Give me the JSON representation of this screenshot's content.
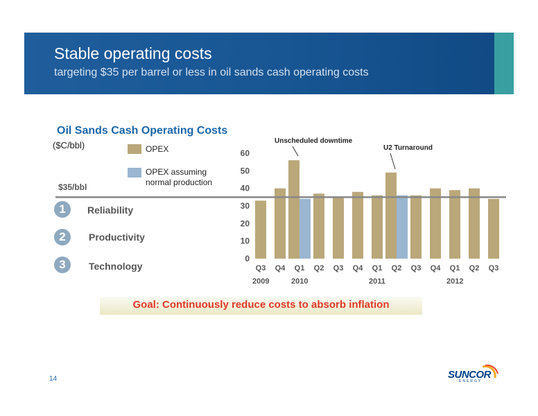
{
  "header": {
    "title": "Stable operating costs",
    "subtitle": "targeting $35 per barrel or less in oil sands cash operating costs"
  },
  "chart_data": {
    "type": "bar",
    "title": "Oil Sands Cash Operating Costs",
    "unit_label": "($C/bbl)",
    "ylim": [
      0,
      60
    ],
    "yticks": [
      0,
      10,
      20,
      30,
      40,
      50,
      60
    ],
    "categories": [
      "Q3",
      "Q4",
      "Q1",
      "Q2",
      "Q3",
      "Q4",
      "Q1",
      "Q2",
      "Q3",
      "Q4",
      "Q1",
      "Q2",
      "Q3"
    ],
    "years": [
      {
        "label": "2009",
        "start_index": 0
      },
      {
        "label": "2010",
        "start_index": 2
      },
      {
        "label": "2011",
        "start_index": 6
      },
      {
        "label": "2012",
        "start_index": 10
      }
    ],
    "series": [
      {
        "name": "OPEX",
        "color": "#baa77a",
        "values": [
          33,
          40,
          56,
          37,
          35,
          38,
          36,
          49,
          36,
          40,
          39,
          40,
          34
        ]
      },
      {
        "name": "OPEX assuming normal production",
        "color": "#9ab6d1",
        "values": [
          null,
          null,
          34,
          null,
          null,
          null,
          null,
          36,
          null,
          null,
          null,
          null,
          null
        ]
      }
    ],
    "reference_line": {
      "value": 35,
      "label": "$35/bbl",
      "color": "#888888"
    },
    "annotations": [
      {
        "text": "Unscheduled downtime",
        "index": 2
      },
      {
        "text": "U2 Turnaround",
        "index": 7
      }
    ]
  },
  "legend": {
    "opex": "OPEX",
    "opex_normal_line1": "OPEX assuming",
    "opex_normal_line2": "normal production"
  },
  "items": [
    {
      "number": "1",
      "label": "Reliability"
    },
    {
      "number": "2",
      "label": "Productivity"
    },
    {
      "number": "3",
      "label": "Technology"
    }
  ],
  "goal": "Goal: Continuously reduce costs to absorb inflation",
  "footer": {
    "page_number": "14",
    "logo_text": "SUNCOR",
    "logo_subtext": "ENERGY"
  }
}
